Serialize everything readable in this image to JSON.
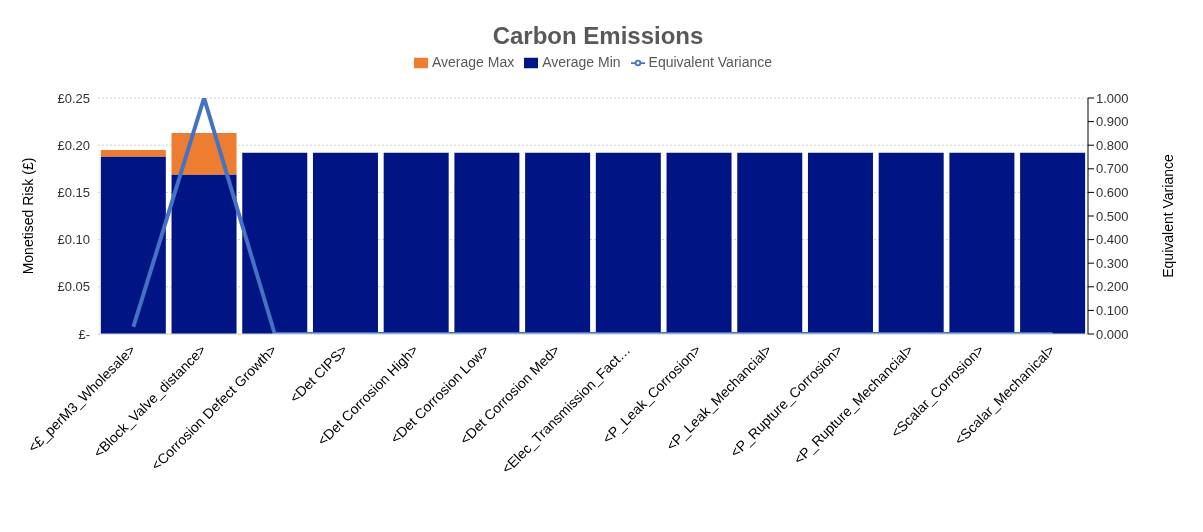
{
  "chart_data": {
    "type": "bar",
    "title": "Carbon Emissions",
    "ylabel": "Monetised Risk (£)",
    "y2label": "Equivalent Variance",
    "categories": [
      "<£_perM3_Wholesale>",
      "<Block_Valve_distance>",
      "<Corrosion Defect Growth>",
      "<Det CIPS>",
      "<Det Corrosion High>",
      "<Det Corrosion Low>",
      "<Det Corrosion Med>",
      "<Elec_Transmission_Fact…",
      "<P_Leak_Corrosion>",
      "<P_Leak_Mechancial>",
      "<P_Rupture_Corrosion>",
      "<P_Rupture_Mechancial>",
      "<Scalar_Corrosion>",
      "<Scalar_Mechanical>"
    ],
    "stacked": true,
    "series": [
      {
        "name": "Average Min",
        "color": "#001484",
        "values": [
          0.188,
          0.169,
          0.192,
          0.192,
          0.192,
          0.192,
          0.192,
          0.192,
          0.192,
          0.192,
          0.192,
          0.192,
          0.192,
          0.192
        ]
      },
      {
        "name": "Average Max",
        "color": "#ed7d31",
        "values": [
          0.007,
          0.044,
          0,
          0,
          0,
          0,
          0,
          0,
          0,
          0,
          0,
          0,
          0,
          0
        ]
      },
      {
        "name": "Equivalent Variance",
        "type": "line",
        "axis": "y2",
        "color": "#4472c4",
        "values": [
          0.03,
          1.0,
          0,
          0,
          0,
          0,
          0,
          0,
          0,
          0,
          0,
          0,
          0,
          0
        ]
      }
    ],
    "ylim": [
      0,
      0.25
    ],
    "yticks": [
      {
        "value": 0,
        "label": "£-"
      },
      {
        "value": 0.05,
        "label": "£0.05"
      },
      {
        "value": 0.1,
        "label": "£0.10"
      },
      {
        "value": 0.15,
        "label": "£0.15"
      },
      {
        "value": 0.2,
        "label": "£0.20"
      },
      {
        "value": 0.25,
        "label": "£0.25"
      }
    ],
    "y2lim": [
      0,
      1
    ],
    "y2ticks": [
      {
        "value": 0,
        "label": "0.000"
      },
      {
        "value": 0.1,
        "label": "0.100"
      },
      {
        "value": 0.2,
        "label": "0.200"
      },
      {
        "value": 0.3,
        "label": "0.300"
      },
      {
        "value": 0.4,
        "label": "0.400"
      },
      {
        "value": 0.5,
        "label": "0.500"
      },
      {
        "value": 0.6,
        "label": "0.600"
      },
      {
        "value": 0.7,
        "label": "0.700"
      },
      {
        "value": 0.8,
        "label": "0.800"
      },
      {
        "value": 0.9,
        "label": "0.900"
      },
      {
        "value": 1,
        "label": "1.000"
      }
    ],
    "grid": "y",
    "legend": "top",
    "marker": "none"
  }
}
